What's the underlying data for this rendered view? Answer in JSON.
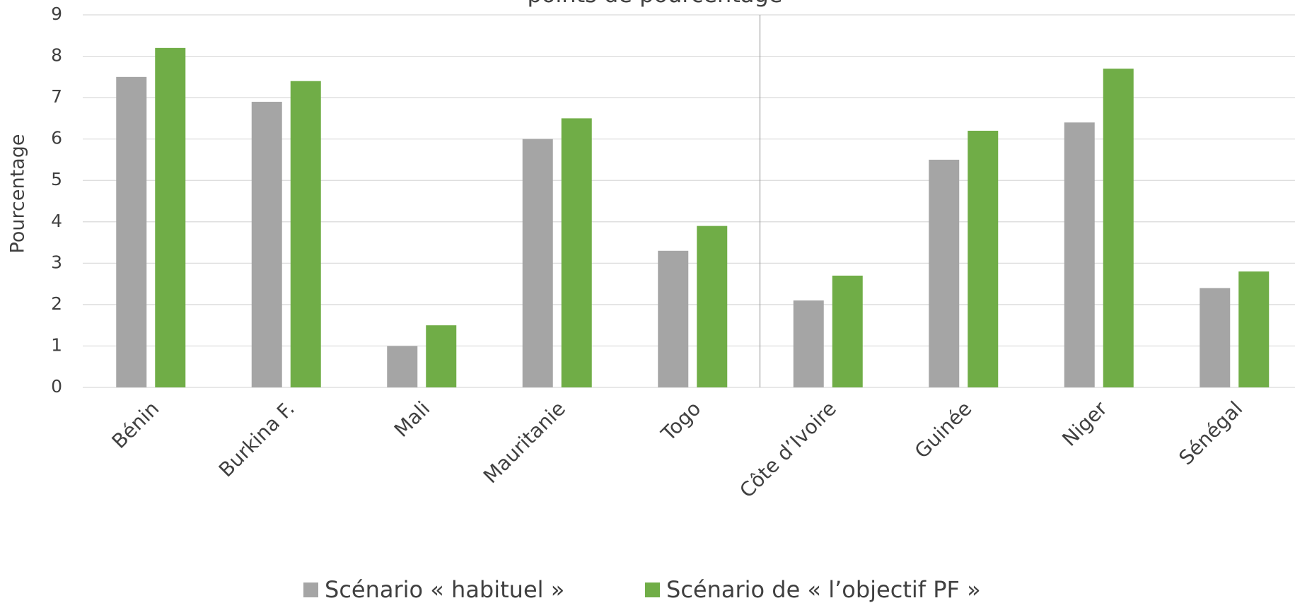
{
  "chart_data": {
    "type": "bar",
    "title": "points de pourcentage",
    "y_label": "Pourcentage",
    "categories": [
      "Bénin",
      "Burkina F.",
      "Mali",
      "Mauritanie",
      "Togo",
      "Côte d’Ivoire",
      "Guinée",
      "Niger",
      "Sénégal"
    ],
    "series": [
      {
        "name": "Scénario « habituel »",
        "color": "#a5a5a5",
        "values": [
          7.5,
          6.9,
          1.0,
          6.0,
          3.3,
          2.1,
          5.5,
          6.4,
          2.4
        ]
      },
      {
        "name": "Scénario de « l’objectif PF »",
        "color": "#70ad47",
        "values": [
          8.2,
          7.4,
          1.5,
          6.5,
          3.9,
          2.7,
          6.2,
          7.7,
          2.8
        ]
      }
    ],
    "ylim": [
      0,
      9
    ],
    "yticks": [
      0,
      1,
      2,
      3,
      4,
      5,
      6,
      7,
      8,
      9
    ],
    "grid": true,
    "legend": "bottom"
  }
}
